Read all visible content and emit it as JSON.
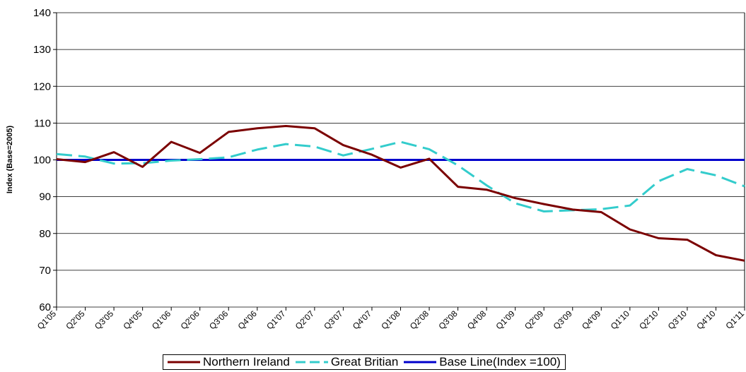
{
  "chart_data": {
    "type": "line",
    "title": "",
    "xlabel": "",
    "ylabel": "Index (Base=2005)",
    "ylim": [
      60,
      140
    ],
    "yticks": [
      60,
      70,
      80,
      90,
      100,
      110,
      120,
      130,
      140
    ],
    "grid": "horizontal",
    "legend_position": "bottom",
    "categories": [
      "Q1'05",
      "Q2'05",
      "Q3'05",
      "Q4'05",
      "Q1'06",
      "Q2'06",
      "Q3'06",
      "Q4'06",
      "Q1'07",
      "Q2'07",
      "Q3'07",
      "Q4'07",
      "Q1'08",
      "Q2'08",
      "Q3'08",
      "Q4'08",
      "Q1'09",
      "Q2'09",
      "Q3'09",
      "Q4'09",
      "Q1'10",
      "Q2'10",
      "Q3'10",
      "Q4'10",
      "Q1'11"
    ],
    "series": [
      {
        "name": "Northern Ireland",
        "color": "#7b0000",
        "dash": "solid",
        "values": [
          100.2,
          99.4,
          102.1,
          98.1,
          104.9,
          101.9,
          107.6,
          108.6,
          109.2,
          108.6,
          104.0,
          101.4,
          97.9,
          100.3,
          92.7,
          91.9,
          89.6,
          88.0,
          86.5,
          85.8,
          81.1,
          78.7,
          78.3,
          74.1,
          72.6
        ]
      },
      {
        "name": "Great Britian",
        "color": "#33cccc",
        "dash": "dashed",
        "values": [
          101.6,
          100.9,
          99.0,
          99.1,
          99.8,
          100.2,
          100.7,
          102.8,
          104.3,
          103.6,
          101.2,
          103.0,
          104.9,
          102.9,
          98.5,
          93.1,
          88.2,
          86.0,
          86.3,
          86.6,
          87.6,
          94.2,
          97.5,
          95.8,
          92.8
        ]
      },
      {
        "name": "Base Line(Index =100)",
        "color": "#0000cc",
        "dash": "solid",
        "values": [
          100,
          100,
          100,
          100,
          100,
          100,
          100,
          100,
          100,
          100,
          100,
          100,
          100,
          100,
          100,
          100,
          100,
          100,
          100,
          100,
          100,
          100,
          100,
          100,
          100
        ]
      }
    ]
  }
}
